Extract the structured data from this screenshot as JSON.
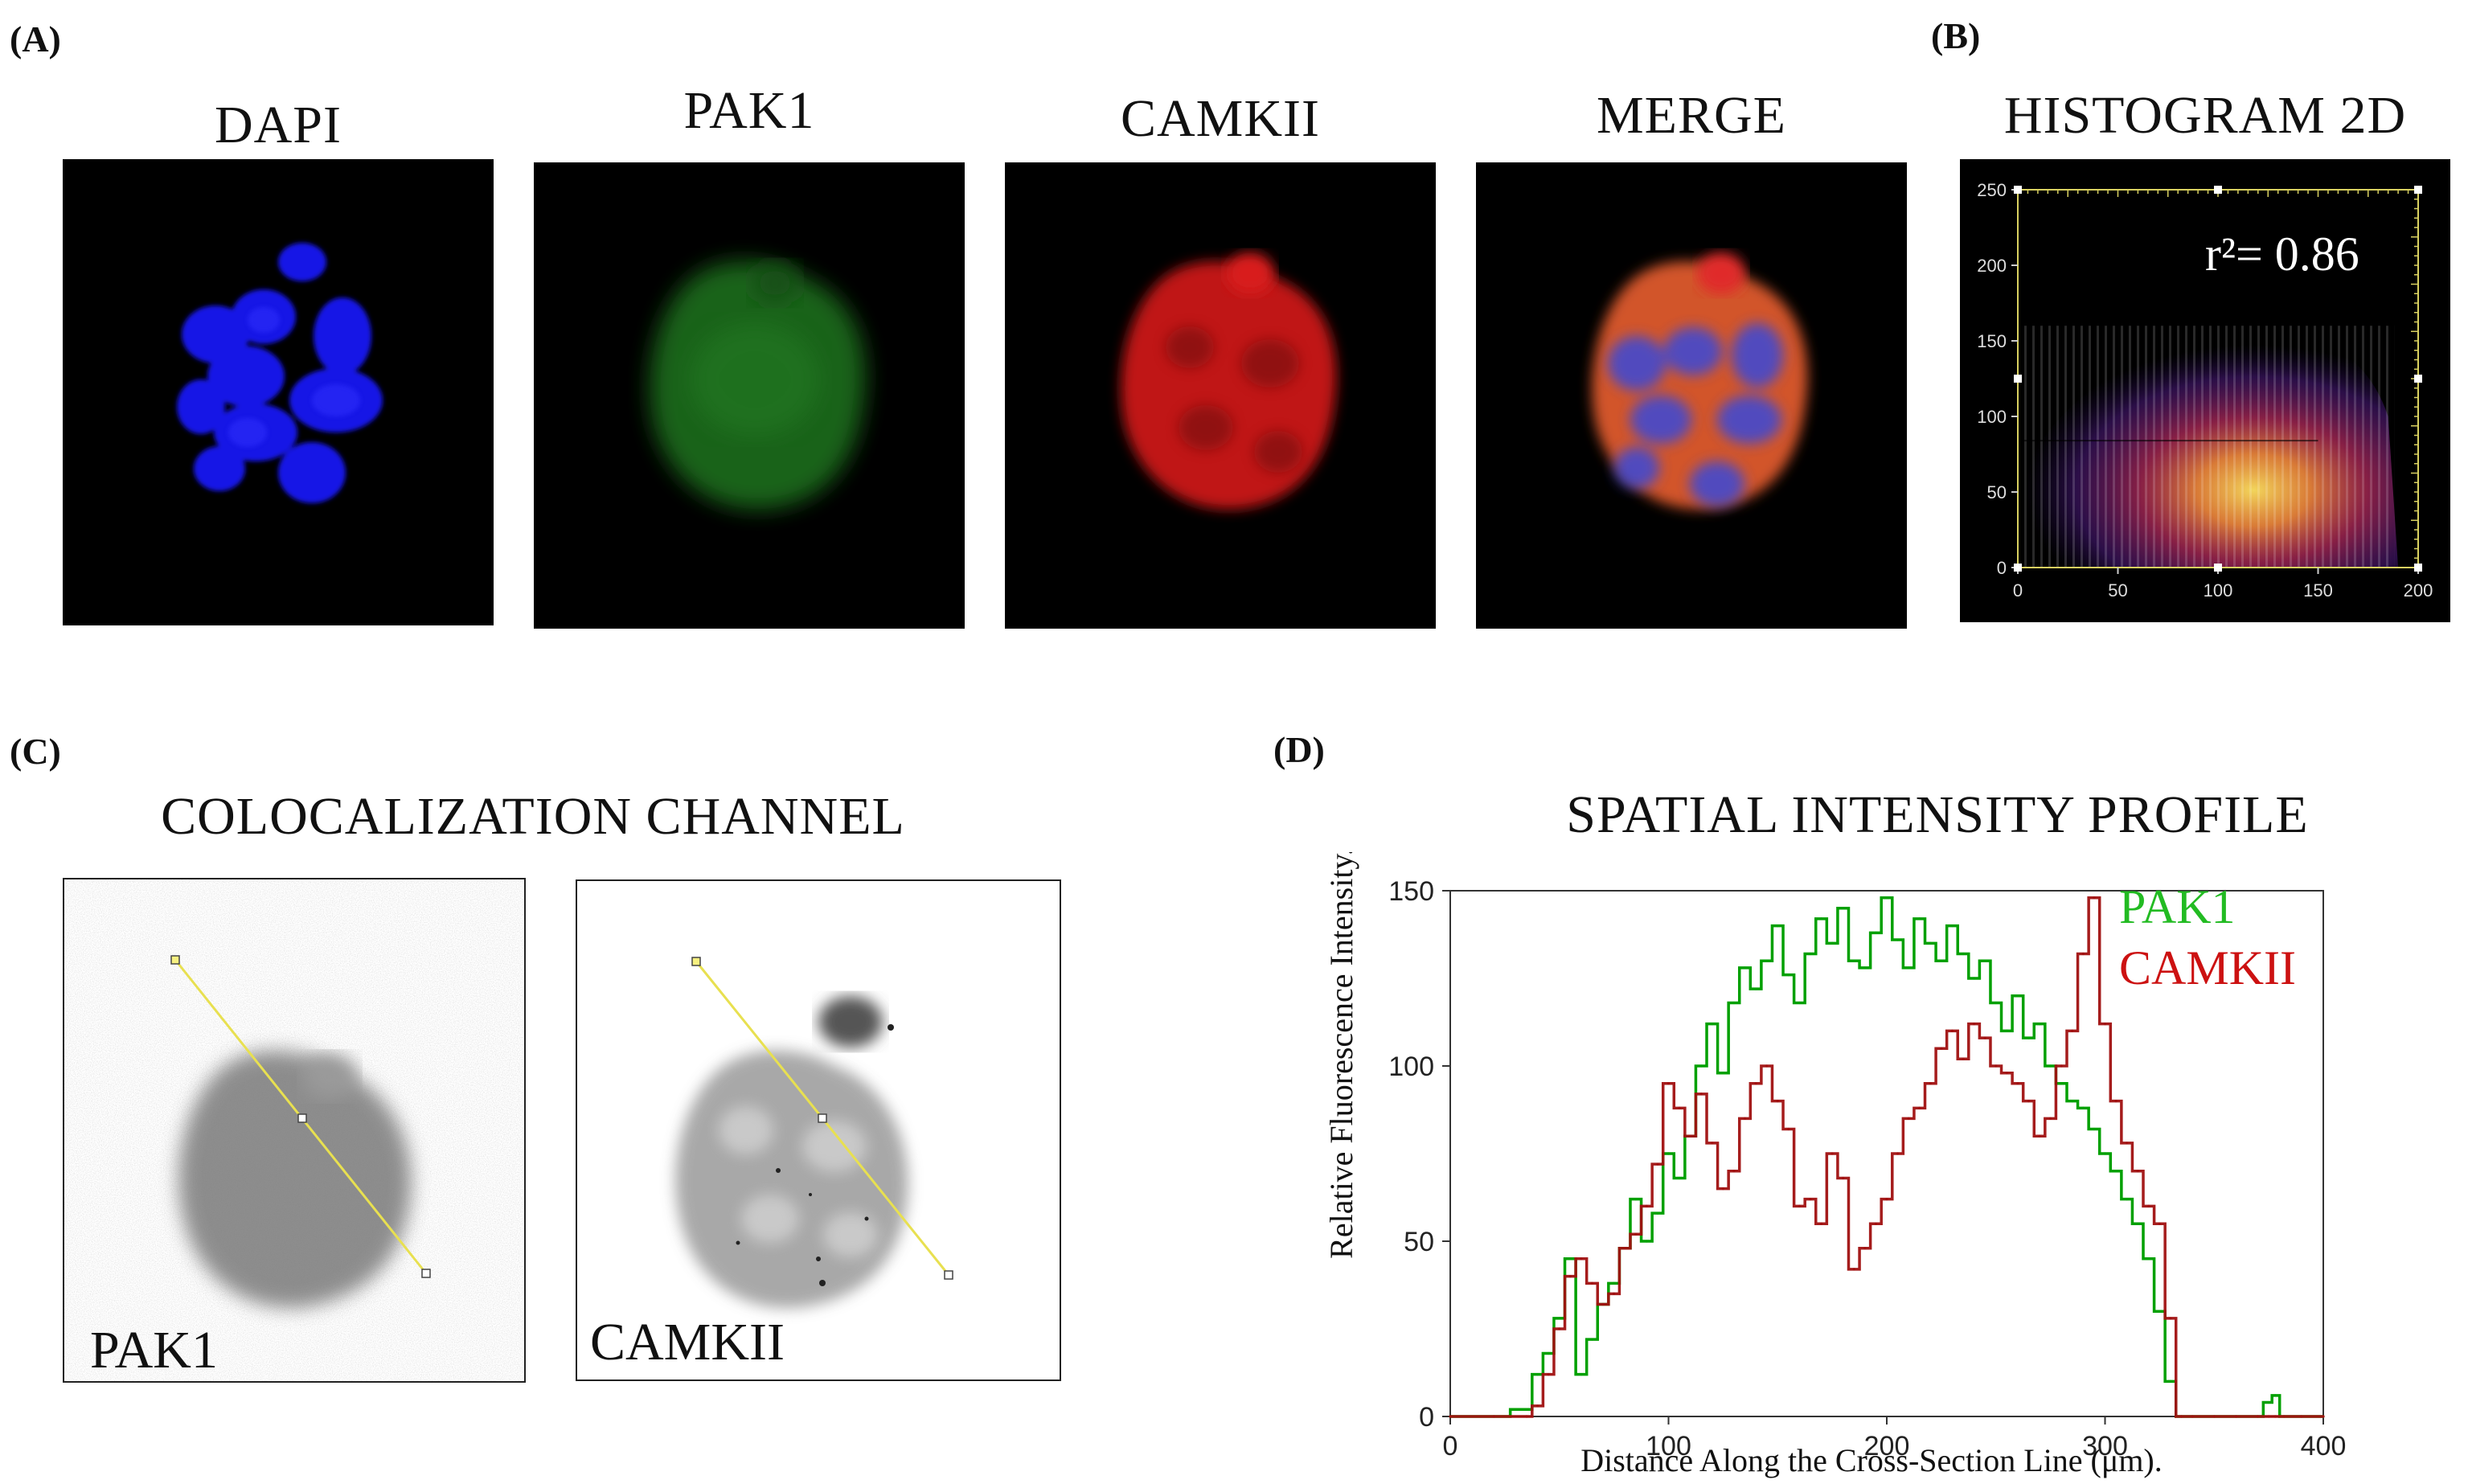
{
  "panel_labels": {
    "a": "(A)",
    "b": "(B)",
    "c": "(C)",
    "d": "(D)"
  },
  "panel_a": {
    "titles": {
      "dapi": "DAPI",
      "pak1": "PAK1",
      "camkii": "CAMKII",
      "merge": "MERGE"
    }
  },
  "panel_c": {
    "title": "COLOCALIZATION CHANNEL",
    "labels": {
      "pak1": "PAK1",
      "camkii": "CAMKII"
    }
  },
  "colors": {
    "dapi": "#1a1aff",
    "pak1_cell": "#1f7a1f",
    "camkii_cell": "#d01a1a",
    "pak1_line": "#00a000",
    "camkii_line": "#a01010",
    "pak1_legend": "#22bb22",
    "camkii_legend": "#cc1111",
    "hist_axis": "#d8d060"
  },
  "chart_data": [
    {
      "type": "heatmap",
      "title": "HISTOGRAM 2D",
      "annotation": "r²= 0.86",
      "xlim": [
        0,
        200
      ],
      "ylim": [
        0,
        250
      ],
      "xticks": [
        0,
        50,
        100,
        150,
        200
      ],
      "yticks": [
        0,
        50,
        100,
        150,
        200,
        250
      ],
      "xlabel": "",
      "ylabel": ""
    },
    {
      "type": "line",
      "title": "SPATIAL INTENSITY PROFILE",
      "xlabel": "Distance Along the Cross-Section Line (μm).",
      "ylabel": "Relative Fluorescence Intensity.",
      "xlim": [
        0,
        400
      ],
      "ylim": [
        0,
        150
      ],
      "xticks": [
        0,
        100,
        200,
        300,
        400
      ],
      "yticks": [
        0,
        50,
        100,
        150
      ],
      "legend": [
        "PAK1",
        "CAMKII"
      ],
      "legend_position": "top-right",
      "x": [
        0,
        20,
        35,
        40,
        45,
        50,
        55,
        60,
        65,
        70,
        75,
        80,
        85,
        90,
        95,
        100,
        105,
        110,
        115,
        120,
        125,
        130,
        135,
        140,
        145,
        150,
        155,
        160,
        165,
        170,
        175,
        180,
        185,
        190,
        195,
        200,
        205,
        210,
        215,
        220,
        225,
        230,
        235,
        240,
        245,
        250,
        255,
        260,
        265,
        270,
        275,
        280,
        285,
        290,
        295,
        300,
        305,
        310,
        315,
        320,
        325,
        330,
        335,
        340,
        350,
        360,
        370,
        375,
        378,
        382,
        390,
        400
      ],
      "series": [
        {
          "name": "PAK1",
          "values": [
            0,
            0,
            2,
            12,
            18,
            28,
            45,
            12,
            22,
            32,
            38,
            48,
            62,
            50,
            58,
            75,
            68,
            80,
            100,
            112,
            98,
            118,
            128,
            122,
            130,
            140,
            126,
            118,
            132,
            142,
            135,
            145,
            130,
            128,
            138,
            148,
            136,
            128,
            142,
            135,
            130,
            140,
            132,
            125,
            130,
            118,
            110,
            120,
            108,
            112,
            100,
            95,
            90,
            88,
            82,
            75,
            70,
            62,
            55,
            45,
            30,
            10,
            0,
            0,
            0,
            0,
            0,
            4,
            6,
            0,
            0,
            0
          ]
        },
        {
          "name": "CAMKII",
          "values": [
            0,
            0,
            0,
            3,
            12,
            25,
            40,
            45,
            38,
            32,
            35,
            48,
            52,
            60,
            72,
            95,
            88,
            80,
            92,
            78,
            65,
            70,
            85,
            95,
            100,
            90,
            82,
            60,
            62,
            55,
            75,
            68,
            42,
            48,
            55,
            62,
            75,
            85,
            88,
            95,
            105,
            110,
            102,
            112,
            108,
            100,
            98,
            95,
            90,
            80,
            85,
            100,
            110,
            132,
            148,
            112,
            90,
            78,
            70,
            60,
            55,
            28,
            0,
            0,
            0,
            0,
            0,
            0,
            0,
            0,
            0,
            0
          ]
        }
      ]
    }
  ]
}
